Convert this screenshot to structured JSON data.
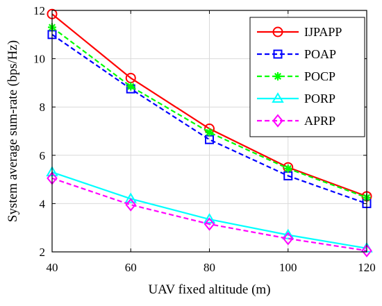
{
  "chart_data": {
    "type": "line",
    "xlabel": "UAV fixed altitude (m)",
    "ylabel": "System average sum-rate (bps/Hz)",
    "x": [
      40,
      60,
      80,
      100,
      120
    ],
    "xlim": [
      40,
      120
    ],
    "ylim": [
      2,
      12
    ],
    "xticks": [
      "40",
      "60",
      "80",
      "100",
      "120"
    ],
    "yticks": [
      "2",
      "4",
      "6",
      "8",
      "10",
      "12"
    ],
    "grid": true,
    "legend_position": "top-right",
    "series": [
      {
        "name": "IJPAPP",
        "values": [
          11.85,
          9.2,
          7.1,
          5.5,
          4.3
        ],
        "color": "#ff0000",
        "dash": "solid",
        "marker": "circle"
      },
      {
        "name": "POAP",
        "values": [
          11.0,
          8.75,
          6.65,
          5.15,
          4.0
        ],
        "color": "#0000ff",
        "dash": "dashed",
        "marker": "square"
      },
      {
        "name": "POCP",
        "values": [
          11.3,
          8.85,
          6.95,
          5.45,
          4.25
        ],
        "color": "#00ff00",
        "dash": "dashed",
        "marker": "asterisk"
      },
      {
        "name": "PORP",
        "values": [
          5.3,
          4.2,
          3.35,
          2.7,
          2.15
        ],
        "color": "#00ffff",
        "dash": "solid",
        "marker": "triangle"
      },
      {
        "name": "APRP",
        "values": [
          5.05,
          3.95,
          3.15,
          2.55,
          2.05
        ],
        "color": "#ff00ff",
        "dash": "dashed",
        "marker": "diamond"
      }
    ]
  }
}
